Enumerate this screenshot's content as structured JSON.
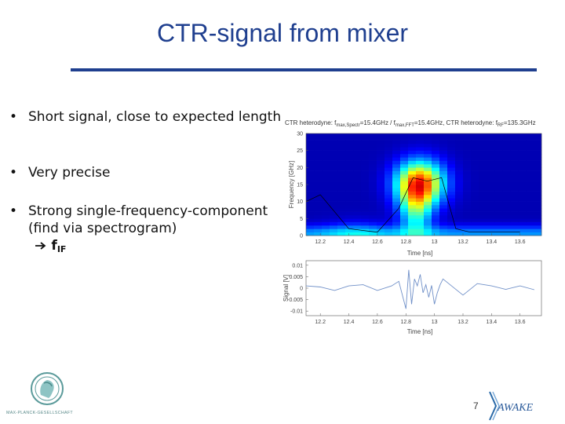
{
  "slide": {
    "title": "CTR-signal from mixer",
    "bullets": [
      {
        "symbol": "•",
        "text": "Short signal, close to expected length"
      },
      {
        "symbol": "•",
        "text": "Very precise"
      },
      {
        "symbol": "•",
        "text": "Strong single-frequency-component (find via spectrogram)"
      }
    ],
    "arrow_result": "f",
    "arrow_result_sub": "IF",
    "page_number": "7",
    "footer_logo_text": "MAX-PLANCK-GESELLSCHAFT",
    "awake_logo_text": "AWAKE",
    "colors": {
      "title": "#1f3f8f",
      "rule": "#1f3f8f"
    }
  },
  "chart_data": [
    {
      "type": "heatmap",
      "title": "CTR heterodyne: f_max,Spectr=15.4GHz / f_max,FFT=15.4GHz, CTR heterodyne: f_RF=135.3GHz",
      "title_parts": {
        "p1": "CTR heterodyne:  f",
        "p1_sub": "max,Spectr",
        "p2": "=15.4GHz / f",
        "p2_sub": "max,FFT",
        "p3": "=15.4GHz, CTR heterodyne:  f",
        "p3_sub": "RF",
        "p4": "=135.3GHz"
      },
      "xlabel": "Time [ns]",
      "ylabel": "Frequency [GHz]",
      "xlim": [
        12.1,
        13.75
      ],
      "ylim": [
        0,
        30
      ],
      "xticks": [
        "12.2",
        "12.4",
        "12.6",
        "12.8",
        "13",
        "13.2",
        "13.4",
        "13.6"
      ],
      "xtick_values": [
        12.2,
        12.4,
        12.6,
        12.8,
        13.0,
        13.2,
        13.4,
        13.6
      ],
      "yticks": [
        "0",
        "5",
        "10",
        "15",
        "20",
        "25",
        "30"
      ],
      "ytick_values": [
        0,
        5,
        10,
        15,
        20,
        25,
        30
      ],
      "peak_line": {
        "x": [
          12.1,
          12.2,
          12.4,
          12.6,
          12.75,
          12.85,
          12.95,
          13.05,
          13.15,
          13.25,
          13.4,
          13.6
        ],
        "y": [
          10,
          12,
          2,
          1,
          8,
          17,
          16,
          17,
          2,
          1,
          1,
          1
        ]
      }
    },
    {
      "type": "line",
      "title": "",
      "xlabel": "Time [ns]",
      "ylabel": "Signal [V]",
      "xlim": [
        12.1,
        13.75
      ],
      "ylim": [
        -0.012,
        0.012
      ],
      "xticks": [
        "12.2",
        "12.4",
        "12.6",
        "12.8",
        "13",
        "13.2",
        "13.4",
        "13.6"
      ],
      "xtick_values": [
        12.2,
        12.4,
        12.6,
        12.8,
        13.0,
        13.2,
        13.4,
        13.6
      ],
      "yticks": [
        "0.01",
        "0.005",
        "0",
        "-0.005",
        "-0.01"
      ],
      "ytick_values": [
        0.01,
        0.005,
        0,
        -0.005,
        -0.01
      ],
      "series": [
        {
          "x": [
            12.1,
            12.2,
            12.3,
            12.4,
            12.5,
            12.6,
            12.7,
            12.75,
            12.8,
            12.82,
            12.84,
            12.86,
            12.88,
            12.9,
            12.92,
            12.94,
            12.96,
            12.98,
            13.0,
            13.02,
            13.04,
            13.06,
            13.1,
            13.2,
            13.3,
            13.4,
            13.5,
            13.6,
            13.7
          ],
          "y": [
            0.001,
            0.0005,
            -0.001,
            0.001,
            0.0015,
            -0.001,
            0.001,
            0.003,
            -0.009,
            0.008,
            -0.007,
            0.004,
            0.001,
            0.006,
            -0.002,
            0.0015,
            -0.004,
            0.0012,
            -0.007,
            -0.002,
            0.0015,
            0.004,
            0.002,
            -0.003,
            0.002,
            0.001,
            -0.0005,
            0.001,
            -0.0007
          ]
        }
      ]
    }
  ]
}
